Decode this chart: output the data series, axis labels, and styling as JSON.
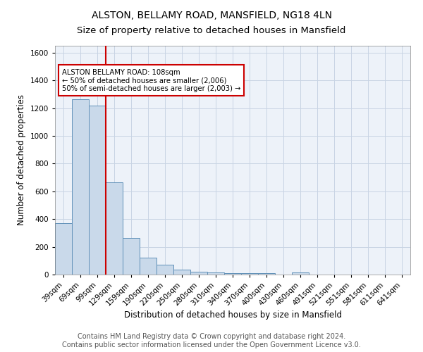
{
  "title": "ALSTON, BELLAMY ROAD, MANSFIELD, NG18 4LN",
  "subtitle": "Size of property relative to detached houses in Mansfield",
  "xlabel": "Distribution of detached houses by size in Mansfield",
  "ylabel": "Number of detached properties",
  "footer_line1": "Contains HM Land Registry data © Crown copyright and database right 2024.",
  "footer_line2": "Contains public sector information licensed under the Open Government Licence v3.0.",
  "bar_labels": [
    "39sqm",
    "69sqm",
    "99sqm",
    "129sqm",
    "159sqm",
    "190sqm",
    "220sqm",
    "250sqm",
    "280sqm",
    "310sqm",
    "340sqm",
    "370sqm",
    "400sqm",
    "430sqm",
    "460sqm",
    "491sqm",
    "521sqm",
    "551sqm",
    "581sqm",
    "611sqm",
    "641sqm"
  ],
  "bar_values": [
    370,
    1265,
    1220,
    665,
    265,
    120,
    72,
    36,
    22,
    14,
    12,
    10,
    8,
    0,
    15,
    0,
    0,
    0,
    0,
    0,
    0
  ],
  "bar_color": "#c9d9ea",
  "bar_edge_color": "#6090b8",
  "annotation_line1": "ALSTON BELLAMY ROAD: 108sqm",
  "annotation_line2": "← 50% of detached houses are smaller (2,006)",
  "annotation_line3": "50% of semi-detached houses are larger (2,003) →",
  "vline_x": 2.5,
  "vline_color": "#cc0000",
  "annotation_box_color": "#ffffff",
  "annotation_box_edge": "#cc0000",
  "grid_color": "#c8d4e4",
  "background_color": "#edf2f9",
  "ylim": [
    0,
    1650
  ],
  "title_fontsize": 10,
  "subtitle_fontsize": 9.5,
  "axis_label_fontsize": 8.5,
  "tick_fontsize": 7.5,
  "footer_fontsize": 7
}
